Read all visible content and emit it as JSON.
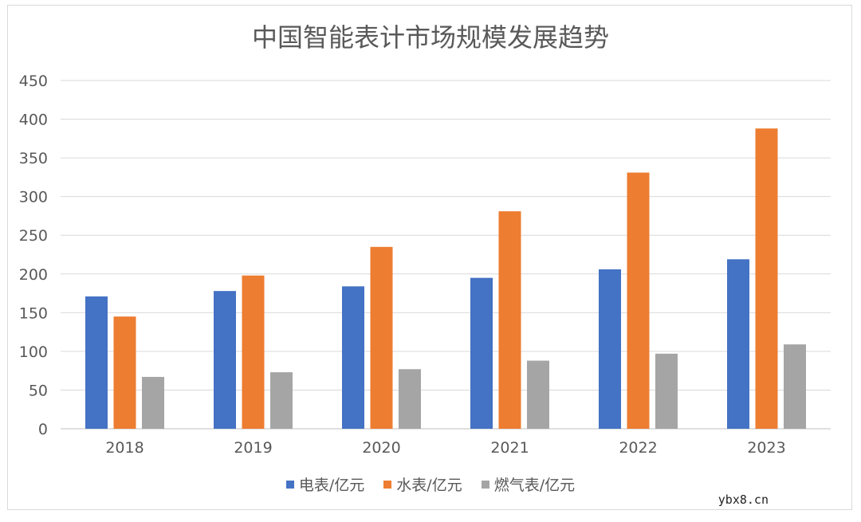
{
  "chart_data": {
    "type": "bar",
    "title": "中国智能表计市场规模发展趋势",
    "categories": [
      "2018",
      "2019",
      "2020",
      "2021",
      "2022",
      "2023"
    ],
    "series": [
      {
        "name": "电表/亿元",
        "color": "#4472c4",
        "values": [
          171,
          178,
          184,
          195,
          206,
          219
        ]
      },
      {
        "name": "水表/亿元",
        "color": "#ed7d31",
        "values": [
          145,
          198,
          235,
          281,
          331,
          388
        ]
      },
      {
        "name": "燃气表/亿元",
        "color": "#a5a5a5",
        "values": [
          67,
          73,
          77,
          88,
          97,
          109
        ]
      }
    ],
    "ylim": [
      0,
      450
    ],
    "yticks": [
      "0",
      "50",
      "100",
      "150",
      "200",
      "250",
      "300",
      "350",
      "400",
      "450"
    ],
    "grid": true,
    "legend": "bottom"
  },
  "watermark": "ybx8.cn"
}
